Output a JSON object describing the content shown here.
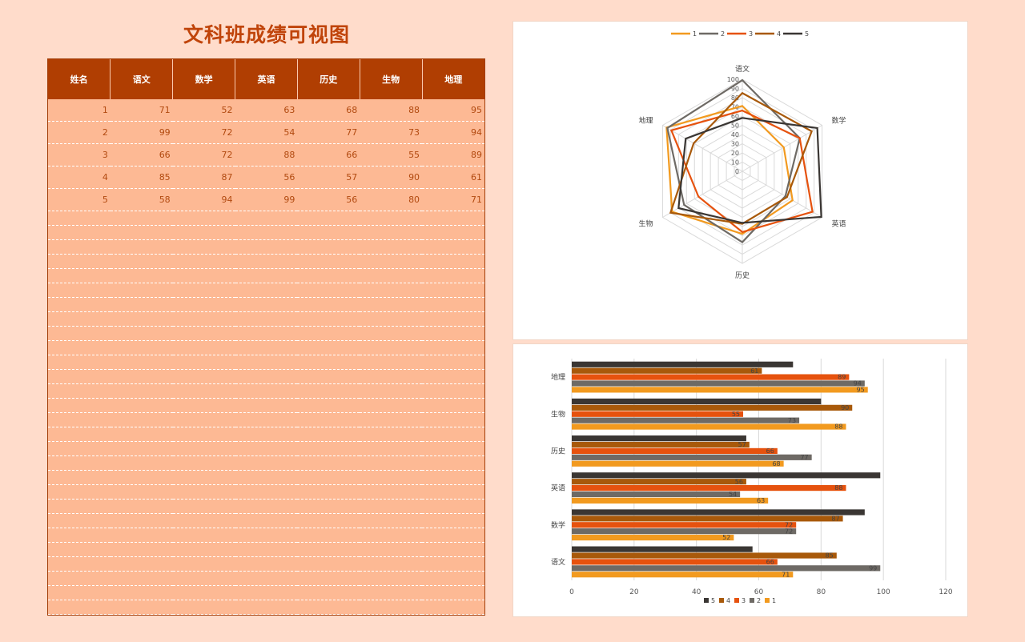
{
  "page": {
    "title": "文科班成绩可视图"
  },
  "table": {
    "headers": [
      "姓名",
      "语文",
      "数学",
      "英语",
      "历史",
      "生物",
      "地理"
    ],
    "rows": [
      [
        "1",
        "71",
        "52",
        "63",
        "68",
        "88",
        "95"
      ],
      [
        "2",
        "99",
        "72",
        "54",
        "77",
        "73",
        "94"
      ],
      [
        "3",
        "66",
        "72",
        "88",
        "66",
        "55",
        "89"
      ],
      [
        "4",
        "85",
        "87",
        "56",
        "57",
        "90",
        "61"
      ],
      [
        "5",
        "58",
        "94",
        "99",
        "56",
        "80",
        "71"
      ]
    ],
    "empty_rows": 28
  },
  "chart_data": [
    {
      "type": "radar",
      "categories": [
        "语文",
        "数学",
        "英语",
        "历史",
        "生物",
        "地理"
      ],
      "series": [
        {
          "name": "1",
          "color": "#f29a1f",
          "values": [
            71,
            52,
            63,
            68,
            88,
            95
          ]
        },
        {
          "name": "2",
          "color": "#6e6a65",
          "values": [
            99,
            72,
            54,
            77,
            73,
            94
          ]
        },
        {
          "name": "3",
          "color": "#e6520e",
          "values": [
            66,
            72,
            88,
            66,
            55,
            89
          ]
        },
        {
          "name": "4",
          "color": "#a8590a",
          "values": [
            85,
            87,
            56,
            57,
            90,
            61
          ]
        },
        {
          "name": "5",
          "color": "#3a3633",
          "values": [
            58,
            94,
            99,
            56,
            80,
            71
          ]
        }
      ],
      "rlim": [
        0,
        100
      ],
      "rticks": [
        0,
        10,
        20,
        30,
        40,
        50,
        60,
        70,
        80,
        90,
        100
      ],
      "legend": "top"
    },
    {
      "type": "bar",
      "orientation": "horizontal",
      "categories": [
        "语文",
        "数学",
        "英语",
        "历史",
        "生物",
        "地理"
      ],
      "series": [
        {
          "name": "1",
          "color": "#f29a1f",
          "values": [
            71,
            52,
            63,
            68,
            88,
            95
          ]
        },
        {
          "name": "2",
          "color": "#6e6a65",
          "values": [
            99,
            72,
            54,
            77,
            73,
            94
          ]
        },
        {
          "name": "3",
          "color": "#e6520e",
          "values": [
            66,
            72,
            88,
            66,
            55,
            89
          ]
        },
        {
          "name": "4",
          "color": "#a8590a",
          "values": [
            85,
            87,
            56,
            57,
            90,
            61
          ]
        },
        {
          "name": "5",
          "color": "#3a3633",
          "values": [
            58,
            94,
            99,
            56,
            80,
            71
          ]
        }
      ],
      "xlim": [
        0,
        120
      ],
      "xticks": [
        0,
        20,
        40,
        60,
        80,
        100,
        120
      ],
      "grid": true,
      "legend": "bottom"
    }
  ]
}
